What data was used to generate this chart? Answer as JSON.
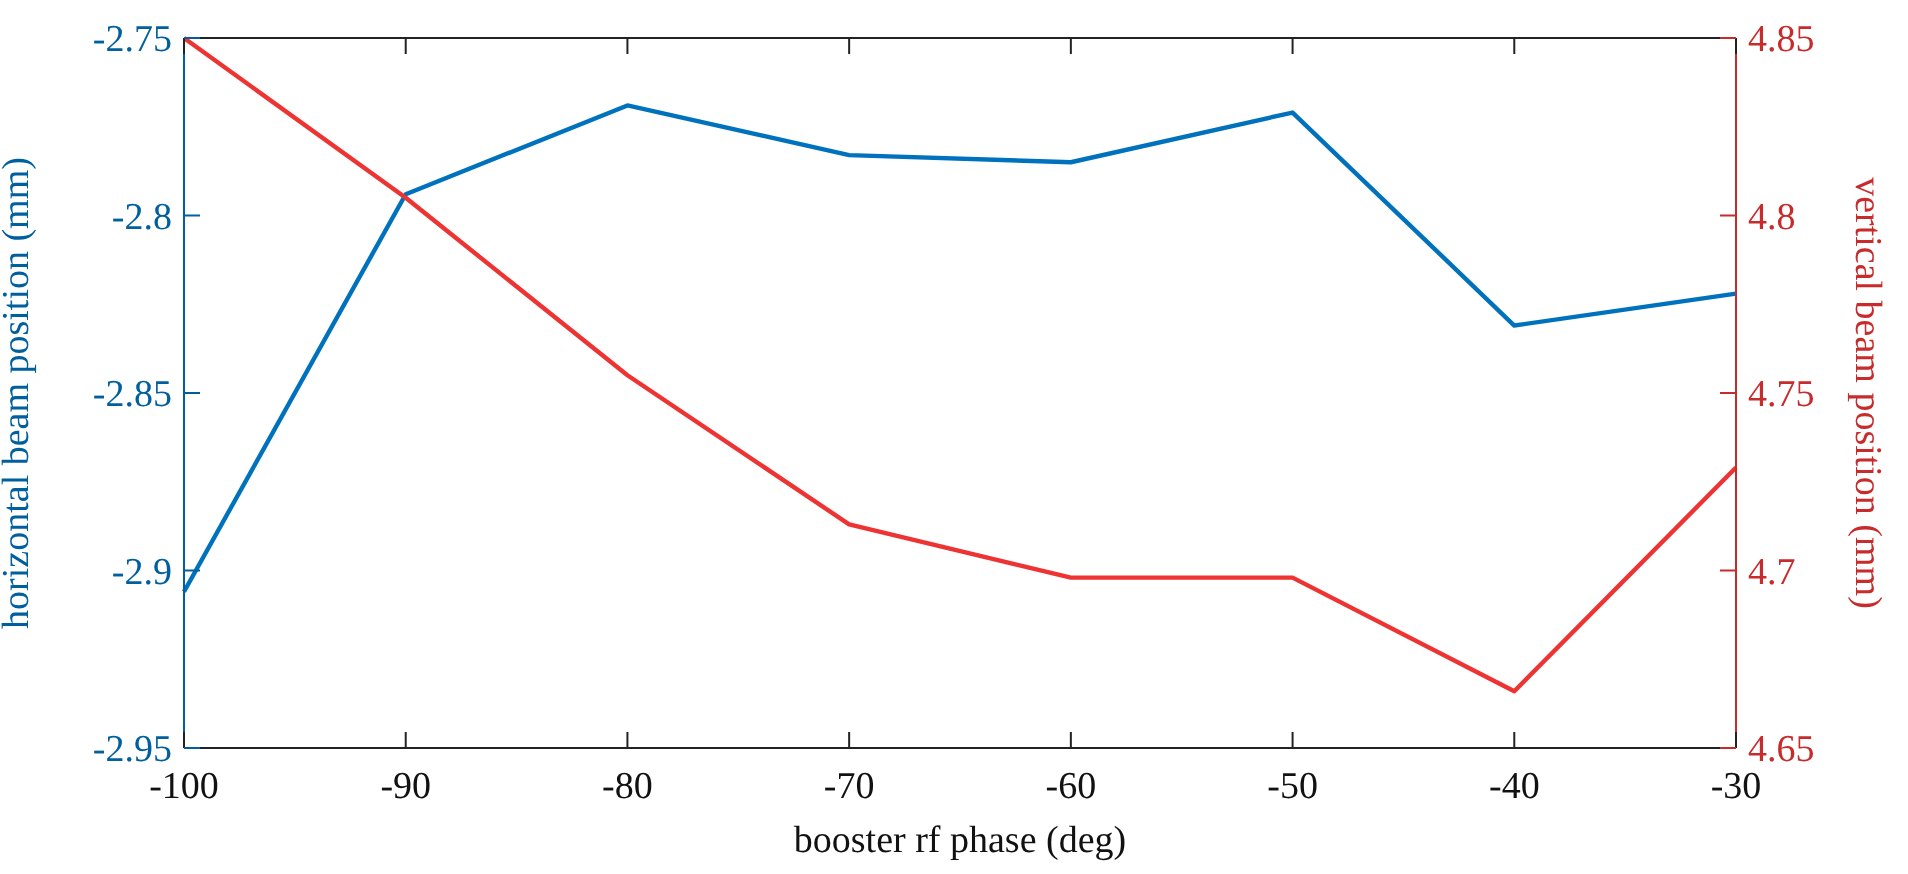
{
  "chart_data": {
    "type": "line",
    "xlabel": "booster rf phase (deg)",
    "ylabel": "horizontal beam position (mm)",
    "y2label": "vertical beam position (mm)",
    "x": [
      -100,
      -90,
      -80,
      -70,
      -60,
      -50,
      -40,
      -30
    ],
    "series": [
      {
        "color": "#0072bd",
        "values": [
          -2.906,
          -2.794,
          -2.769,
          -2.783,
          -2.785,
          -2.771,
          -2.831,
          -2.822
        ]
      },
      {
        "color": "#ee3333",
        "axis": "y2",
        "values": [
          4.85,
          4.805,
          4.755,
          4.713,
          4.698,
          4.698,
          4.666,
          4.729
        ]
      }
    ],
    "xlim": [
      -100,
      -30
    ],
    "xticks": [
      -100,
      -90,
      -80,
      -70,
      -60,
      -50,
      -40,
      -30
    ],
    "ylim": [
      -2.95,
      -2.75
    ],
    "yticks": [
      -2.95,
      -2.9,
      -2.85,
      -2.8,
      -2.75
    ],
    "y2lim": [
      4.65,
      4.85
    ],
    "y2ticks": [
      4.65,
      4.7,
      4.75,
      4.8,
      4.85
    ],
    "grid": false,
    "marker": "none",
    "line_style": "solid"
  }
}
